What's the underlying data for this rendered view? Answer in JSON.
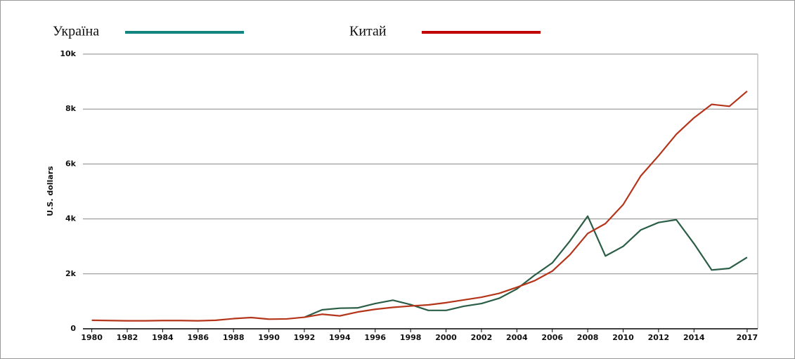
{
  "chart_data": {
    "type": "line",
    "y_label": "U.S. dollars",
    "x": [
      1980,
      1981,
      1982,
      1983,
      1984,
      1985,
      1986,
      1987,
      1988,
      1989,
      1990,
      1991,
      1992,
      1993,
      1994,
      1995,
      1996,
      1997,
      1998,
      1999,
      2000,
      2001,
      2002,
      2003,
      2004,
      2005,
      2006,
      2007,
      2008,
      2009,
      2010,
      2011,
      2012,
      2013,
      2014,
      2015,
      2016,
      2017
    ],
    "series": [
      {
        "name": "Україна",
        "color": "#2a5e46",
        "legend_color": "#138580",
        "values": [
          null,
          null,
          null,
          null,
          null,
          null,
          null,
          null,
          null,
          null,
          null,
          null,
          420,
          690,
          750,
          760,
          920,
          1040,
          880,
          670,
          670,
          820,
          920,
          1110,
          1450,
          1950,
          2400,
          3200,
          4100,
          2650,
          3000,
          3600,
          3870,
          3970,
          3100,
          2140,
          2200,
          2600
        ]
      },
      {
        "name": "Китай",
        "color": "#b5351a",
        "legend_color": "#c00000",
        "values": [
          310,
          300,
          290,
          290,
          300,
          300,
          290,
          310,
          370,
          410,
          350,
          360,
          420,
          530,
          470,
          610,
          710,
          780,
          830,
          870,
          950,
          1050,
          1150,
          1290,
          1510,
          1750,
          2100,
          2700,
          3470,
          3830,
          4520,
          5570,
          6300,
          7080,
          7680,
          8170,
          8100,
          8650
        ]
      }
    ],
    "xlim": [
      1979.5,
      2017.6
    ],
    "xticks": [
      1980,
      1982,
      1984,
      1986,
      1988,
      1990,
      1992,
      1994,
      1996,
      1998,
      2000,
      2002,
      2004,
      2006,
      2008,
      2010,
      2012,
      2014,
      2017
    ],
    "ylim": [
      0,
      10000
    ],
    "yticks": [
      0,
      {
        "value": 2000,
        "label": "2k"
      },
      {
        "value": 4000,
        "label": "4k"
      },
      {
        "value": 6000,
        "label": "6k"
      },
      {
        "value": 8000,
        "label": "8k"
      },
      {
        "value": 10000,
        "label": "10k"
      }
    ],
    "grid": true
  }
}
